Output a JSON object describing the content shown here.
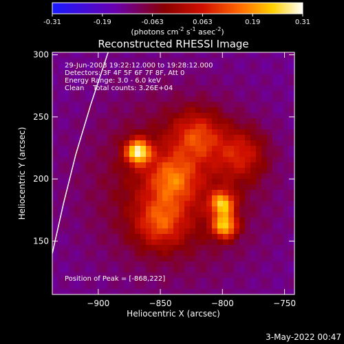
{
  "colorbar": {
    "ticks": [
      "-0.31",
      "-0.19",
      "-0.063",
      "0.063",
      "0.19",
      "0.31"
    ],
    "unit_label": "(photons cm",
    "unit_exp1": "-2",
    "unit_mid": " s",
    "unit_exp2": "-1",
    "unit_mid2": " asec",
    "unit_exp3": "-2",
    "unit_end": ")",
    "min": -0.31,
    "max": 0.31,
    "colormap": [
      "#1a1aff",
      "#6a00b0",
      "#8a0000",
      "#d01000",
      "#ff6a00",
      "#ffd000",
      "#ffffff"
    ]
  },
  "chart_data": {
    "type": "heatmap",
    "title": "Reconstructed RHESSI Image",
    "xlabel": "Heliocentric X (arcsec)",
    "ylabel": "Heliocentric Y (arcsec)",
    "xlim": [
      -937,
      -742
    ],
    "ylim": [
      107,
      302
    ],
    "x_ticks": [
      -900,
      -850,
      -800,
      -750
    ],
    "x_tick_labels": [
      "−900",
      "−850",
      "−800",
      "−750"
    ],
    "y_ticks": [
      150,
      200,
      250,
      300
    ],
    "y_tick_labels": [
      "150",
      "200",
      "250",
      "300"
    ],
    "annotations": [
      "29-Jun-2003 19:22:12.000 to 19:28:12.000",
      "Detectors: 3F 4F 5F 6F 7F 8F, Att 0",
      "Energy Range: 3.0 - 6.0 keV",
      "Clean    Total counts: 3.26E+04"
    ],
    "peak_label": "Position of Peak = [-868,222]",
    "peak": [
      -868,
      222
    ],
    "sources": [
      {
        "x": -868,
        "y": 222,
        "intensity": 0.31
      },
      {
        "x": -800,
        "y": 180,
        "intensity": 0.24
      },
      {
        "x": -798,
        "y": 162,
        "intensity": 0.26
      },
      {
        "x": -840,
        "y": 200,
        "intensity": 0.12
      },
      {
        "x": -820,
        "y": 235,
        "intensity": 0.12
      },
      {
        "x": -850,
        "y": 165,
        "intensity": 0.12
      },
      {
        "x": -785,
        "y": 220,
        "intensity": 0.1
      }
    ],
    "limb_curve": [
      [
        -937,
        140
      ],
      [
        -928,
        180
      ],
      [
        -918,
        220
      ],
      [
        -906,
        260
      ],
      [
        -892,
        302
      ]
    ]
  },
  "footer": {
    "date": "3-May-2022 00:47"
  }
}
